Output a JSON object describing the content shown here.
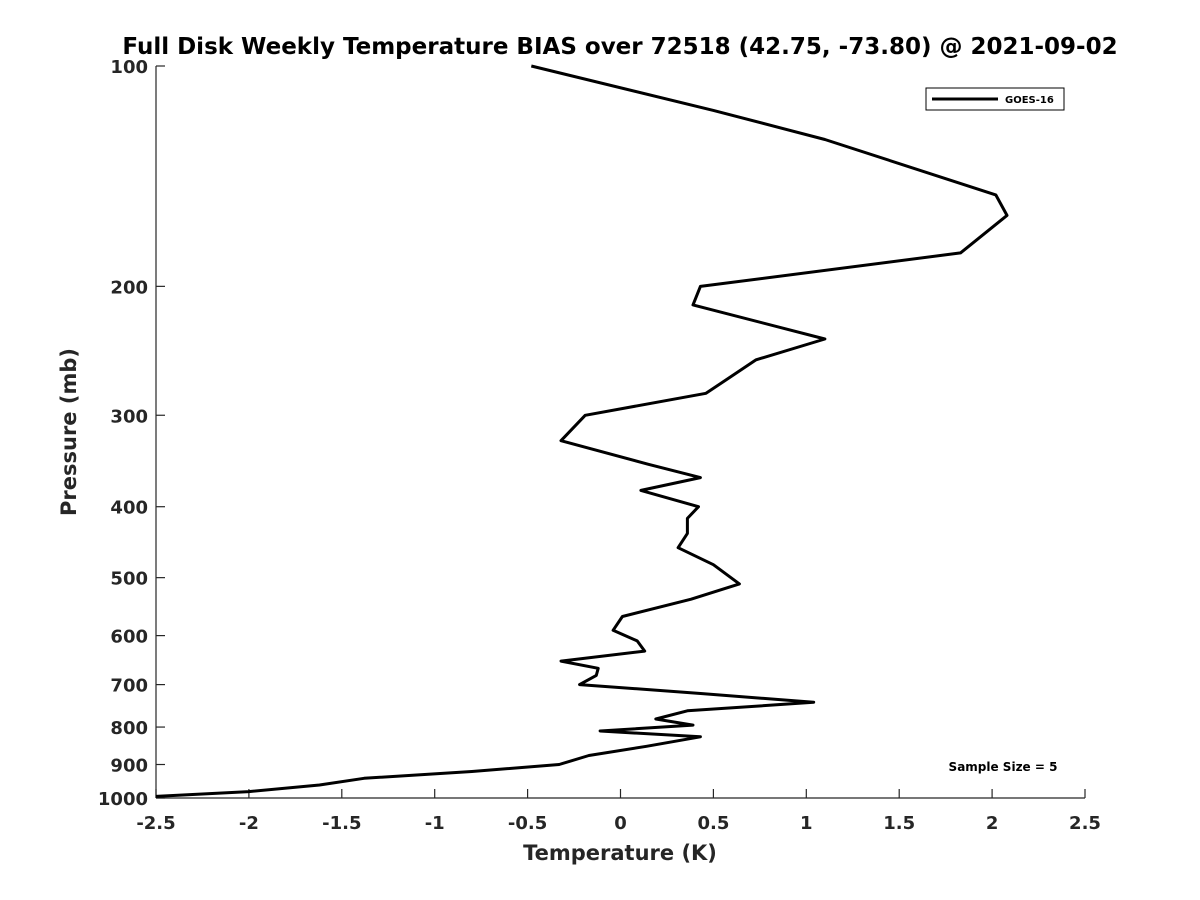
{
  "chart_data": {
    "type": "line",
    "title": "Full Disk Weekly Temperature BIAS over 72518 (42.75, -73.80) @ 2021-09-02",
    "xlabel": "Temperature (K)",
    "ylabel": "Pressure (mb)",
    "xlim": [
      -2.5,
      2.5
    ],
    "ylim": [
      100,
      1000
    ],
    "y_scale": "log",
    "y_reversed": true,
    "grid": false,
    "x_ticks": [
      -2.5,
      -2,
      -1.5,
      -1,
      -0.5,
      0,
      0.5,
      1,
      1.5,
      2,
      2.5
    ],
    "x_tick_labels": [
      "-2.5",
      "-2",
      "-1.5",
      "-1",
      "-0.5",
      "0",
      "0.5",
      "1",
      "1.5",
      "2",
      "2.5"
    ],
    "y_ticks": [
      100,
      200,
      300,
      400,
      500,
      600,
      700,
      800,
      900,
      1000
    ],
    "y_tick_labels": [
      "100",
      "200",
      "300",
      "400",
      "500",
      "600",
      "700",
      "800",
      "900",
      "1000"
    ],
    "legend": {
      "position": "top-right",
      "entries": [
        "GOES-16"
      ]
    },
    "annotation": "Sample Size = 5",
    "series": [
      {
        "name": "GOES-16",
        "color": "#000000",
        "points": [
          [
            -0.48,
            100
          ],
          [
            0.5,
            115
          ],
          [
            1.1,
            126
          ],
          [
            2.02,
            150
          ],
          [
            2.08,
            160
          ],
          [
            1.83,
            180
          ],
          [
            0.43,
            200
          ],
          [
            0.39,
            212
          ],
          [
            1.1,
            236
          ],
          [
            0.73,
            252
          ],
          [
            0.46,
            280
          ],
          [
            -0.19,
            300
          ],
          [
            -0.32,
            325
          ],
          [
            0.15,
            350
          ],
          [
            0.43,
            365
          ],
          [
            0.11,
            380
          ],
          [
            0.42,
            400
          ],
          [
            0.36,
            415
          ],
          [
            0.36,
            435
          ],
          [
            0.31,
            455
          ],
          [
            0.5,
            480
          ],
          [
            0.64,
            510
          ],
          [
            0.38,
            535
          ],
          [
            0.01,
            565
          ],
          [
            -0.04,
            590
          ],
          [
            0.09,
            610
          ],
          [
            0.13,
            630
          ],
          [
            -0.32,
            650
          ],
          [
            -0.12,
            665
          ],
          [
            -0.13,
            680
          ],
          [
            -0.22,
            700
          ],
          [
            0.44,
            720
          ],
          [
            1.04,
            740
          ],
          [
            0.36,
            760
          ],
          [
            0.19,
            780
          ],
          [
            0.39,
            795
          ],
          [
            -0.11,
            810
          ],
          [
            0.43,
            825
          ],
          [
            0.14,
            850
          ],
          [
            -0.17,
            875
          ],
          [
            -0.33,
            900
          ],
          [
            -0.8,
            920
          ],
          [
            -1.38,
            940
          ],
          [
            -1.62,
            960
          ],
          [
            -2.0,
            980
          ],
          [
            -2.5,
            995
          ]
        ]
      }
    ]
  }
}
